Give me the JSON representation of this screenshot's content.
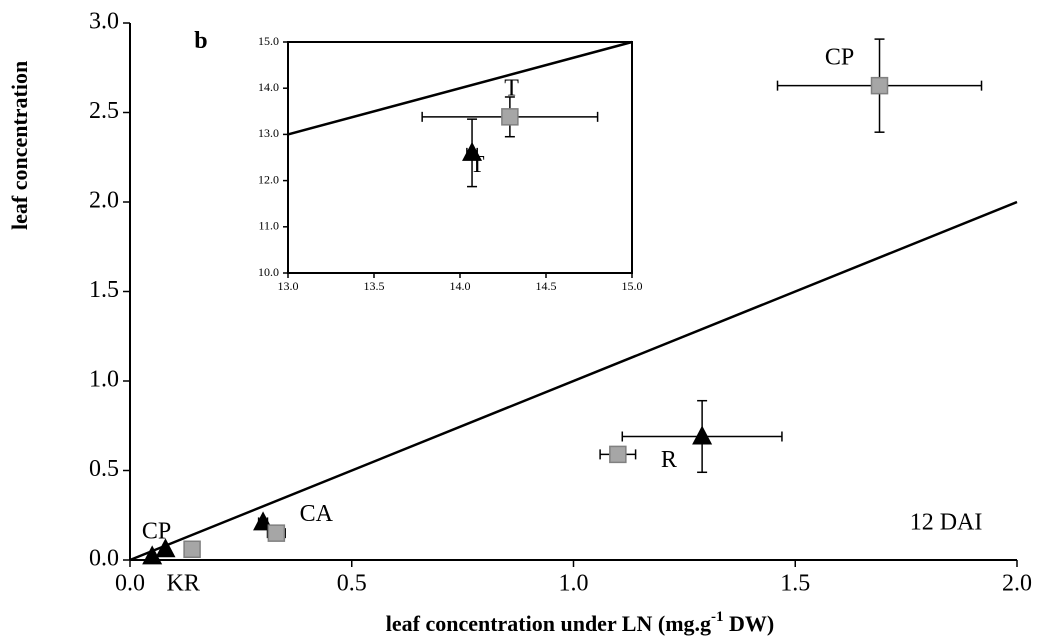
{
  "chart_data": [
    {
      "type": "scatter",
      "ylabel": "leaf concentration",
      "xlabel": [
        "leaf concentration under LN (mg.g",
        "-1",
        " DW)"
      ],
      "xlim": [
        0,
        2
      ],
      "ylim": [
        0,
        3
      ],
      "xticks": [
        {
          "value": 0,
          "label": "0.0"
        },
        0.5,
        {
          "value": 1,
          "label": "1.0"
        },
        1.5,
        {
          "value": 2,
          "label": "2.0"
        }
      ],
      "yticks": [
        {
          "value": 0,
          "label": "0.0"
        },
        0.5,
        {
          "value": 1,
          "label": "1.0"
        },
        1.5,
        {
          "value": 2,
          "label": "2.0"
        },
        2.5,
        {
          "value": 3,
          "label": "3.0"
        }
      ],
      "identity_line": true,
      "series": [
        {
          "marker": "triangle",
          "color": "#000000",
          "x": [
            0.05,
            0.08,
            0.3,
            1.29
          ],
          "values": [
            0.02,
            0.06,
            0.21,
            0.69
          ],
          "xerr": [
            0,
            0,
            0.01,
            0.18
          ],
          "yerr": [
            0,
            0,
            0,
            0.2
          ]
        },
        {
          "marker": "square",
          "color": "#a6a6a6",
          "x": [
            0.14,
            0.33,
            1.1,
            1.69
          ],
          "values": [
            0.06,
            0.15,
            0.59,
            2.65
          ],
          "xerr": [
            0,
            0.02,
            0.04,
            0.23
          ],
          "yerr": [
            0,
            0,
            0,
            0.26
          ]
        }
      ],
      "annotations": [
        {
          "text": "b",
          "x": 0.16,
          "y": 2.89,
          "bold": true
        },
        {
          "text": "CP",
          "x": 1.6,
          "y": 2.8
        },
        {
          "text": "R",
          "x": 1.215,
          "y": 0.55
        },
        {
          "text": "CA",
          "x": 0.42,
          "y": 0.25
        },
        {
          "text": "CP",
          "x": 0.06,
          "y": 0.15
        },
        {
          "text": "KR",
          "x": 0.12,
          "y": -0.14
        },
        {
          "text": "12 DAI",
          "x": 1.84,
          "y": 0.2
        }
      ]
    },
    {
      "type": "scatter",
      "xlim": [
        13,
        15
      ],
      "ylim": [
        10,
        15
      ],
      "xticks": [
        {
          "value": 13,
          "label": "13.0"
        },
        13.5,
        {
          "value": 14,
          "label": "14.0"
        },
        14.5,
        {
          "value": 15,
          "label": "15.0"
        }
      ],
      "yticks": [
        {
          "value": 10,
          "label": "10.0"
        },
        {
          "value": 11,
          "label": "11.0"
        },
        {
          "value": 12,
          "label": "12.0"
        },
        {
          "value": 13,
          "label": "13.0"
        },
        {
          "value": 14,
          "label": "14.0"
        },
        {
          "value": 15,
          "label": "15.0"
        }
      ],
      "identity_line": true,
      "series": [
        {
          "marker": "triangle",
          "color": "#000000",
          "x": [
            14.07
          ],
          "values": [
            12.6
          ],
          "xerr": [
            0.03
          ],
          "yerr": [
            0.73
          ]
        },
        {
          "marker": "square",
          "color": "#a6a6a6",
          "x": [
            14.29
          ],
          "values": [
            13.38
          ],
          "xerr": [
            0.51
          ],
          "yerr": [
            0.43
          ]
        }
      ],
      "annotations": [
        {
          "text": "T",
          "x": 14.3,
          "y": 13.96
        },
        {
          "text": "T",
          "x": 14.1,
          "y": 12.3
        }
      ]
    }
  ]
}
